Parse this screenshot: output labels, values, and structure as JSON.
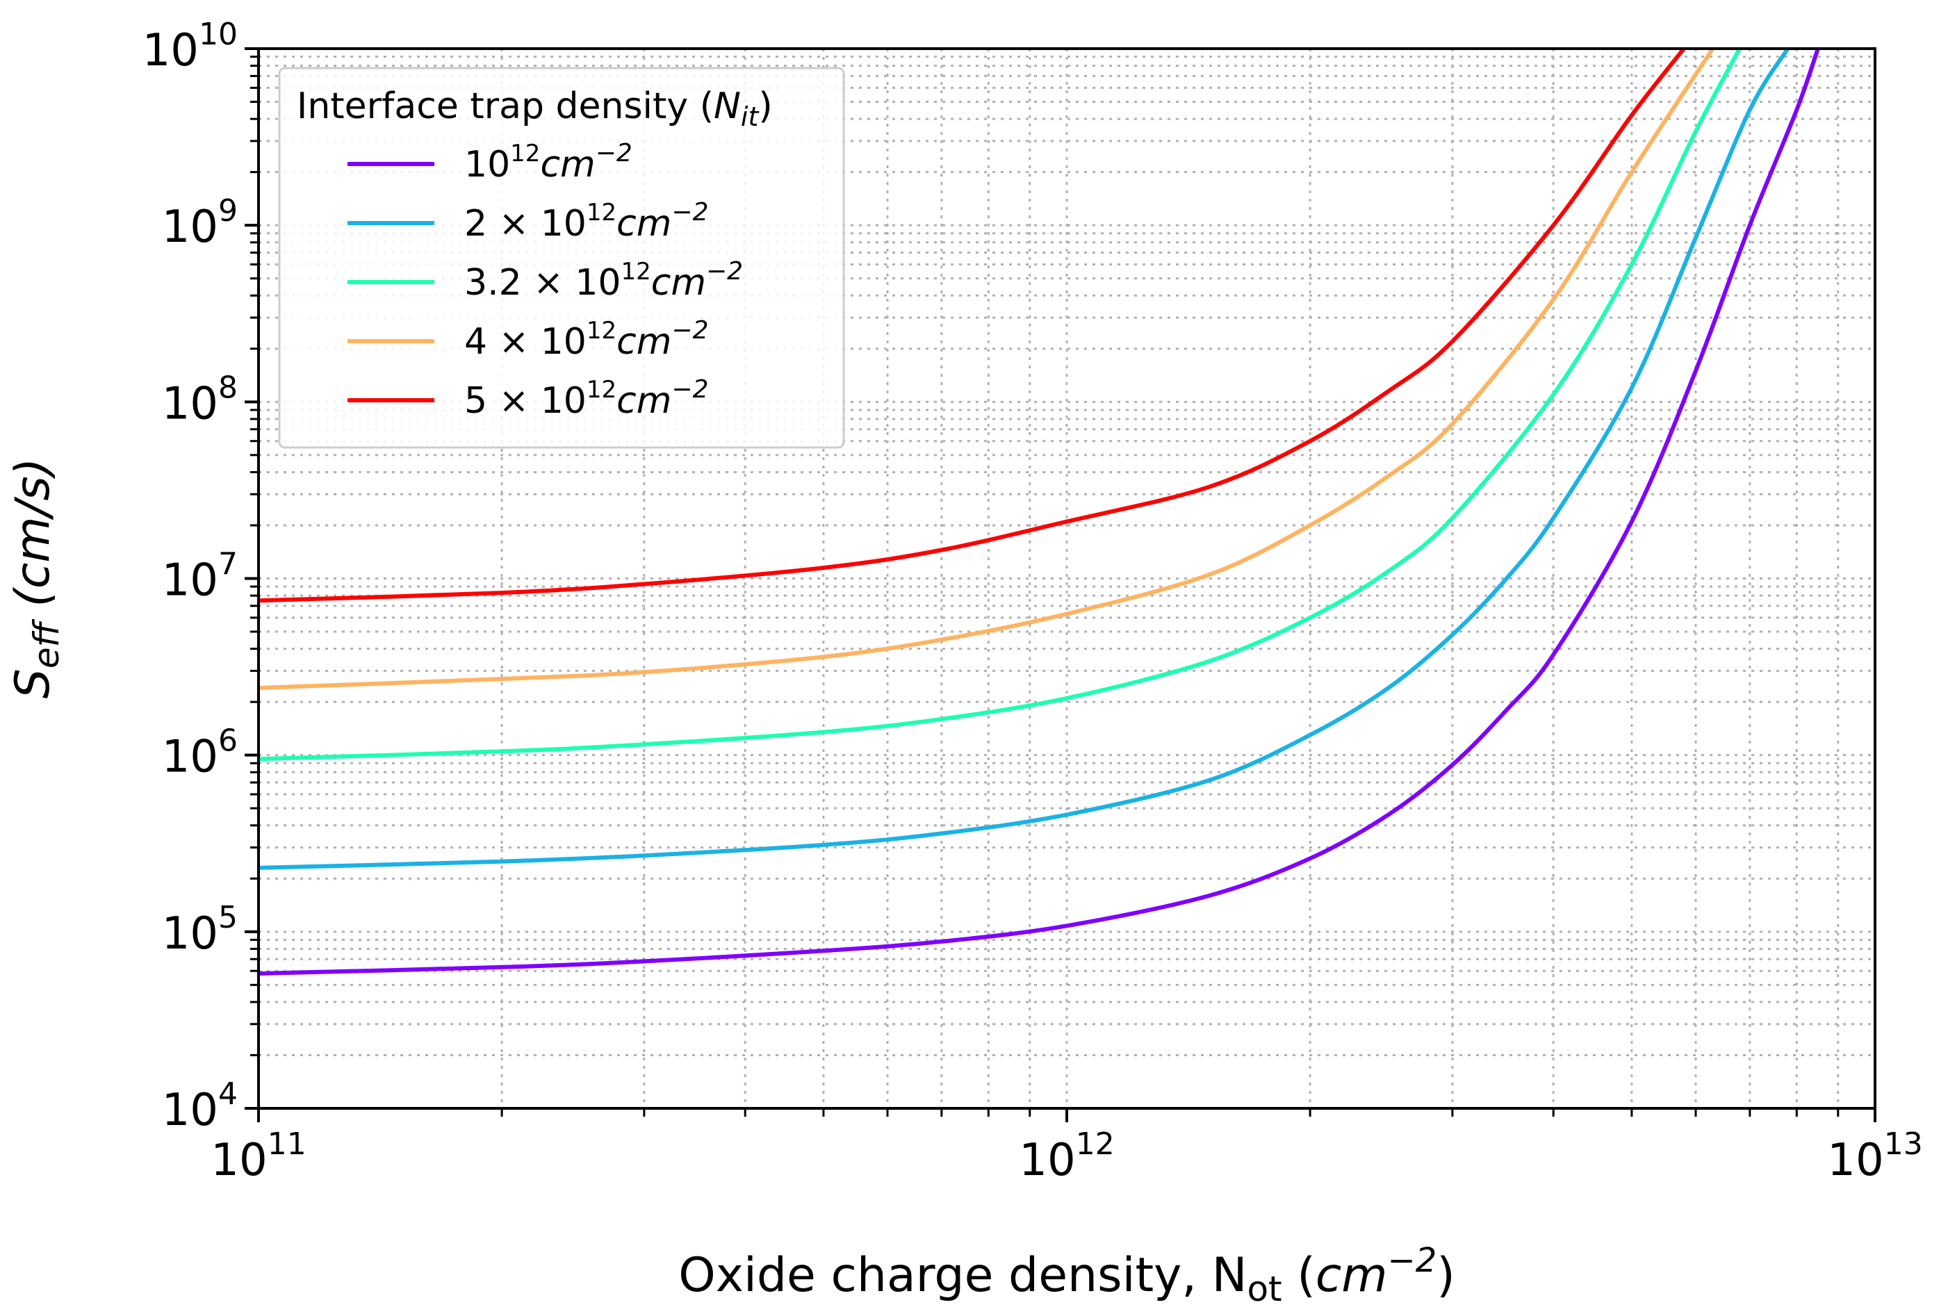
{
  "chart_data": {
    "type": "line",
    "xscale": "log",
    "yscale": "log",
    "xlim": [
      100000000000.0,
      10000000000000.0
    ],
    "ylim": [
      10000.0,
      10000000000.0
    ],
    "xlabel": {
      "text": "Oxide charge density, N",
      "sub": "ot",
      "unit_open": " (",
      "unit_base": "cm",
      "unit_exp": "−2",
      "unit_close": ")"
    },
    "ylabel": {
      "base": "S",
      "sub": "eff",
      "unit": " (cm/s)"
    },
    "x_ticks": [
      {
        "base": "10",
        "exp": "11",
        "value": 100000000000.0
      },
      {
        "base": "10",
        "exp": "12",
        "value": 1000000000000.0
      },
      {
        "base": "10",
        "exp": "13",
        "value": 10000000000000.0
      }
    ],
    "y_ticks": [
      {
        "base": "10",
        "exp": "4",
        "value": 10000.0
      },
      {
        "base": "10",
        "exp": "5",
        "value": 100000.0
      },
      {
        "base": "10",
        "exp": "6",
        "value": 1000000.0
      },
      {
        "base": "10",
        "exp": "7",
        "value": 10000000.0
      },
      {
        "base": "10",
        "exp": "8",
        "value": 100000000.0
      },
      {
        "base": "10",
        "exp": "9",
        "value": 1000000000.0
      },
      {
        "base": "10",
        "exp": "10",
        "value": 10000000000.0
      }
    ],
    "grid": true,
    "legend": {
      "position": "top-left",
      "title": {
        "text": "Interface trap density (",
        "sym": "N",
        "sub": "it",
        "close": ")"
      }
    },
    "series": [
      {
        "name": "10¹²cm⁻²",
        "label": {
          "coef": "",
          "base": "10",
          "exp": "12",
          "unit": "cm",
          "unit_exp": "−2"
        },
        "color": "#8000ff",
        "x": [
          100000000000.0,
          200000000000.0,
          300000000000.0,
          500000000000.0,
          700000000000.0,
          1000000000000.0,
          1500000000000.0,
          2000000000000.0,
          2500000000000.0,
          3000000000000.0,
          3500000000000.0,
          4000000000000.0,
          5000000000000.0,
          6000000000000.0,
          7000000000000.0,
          8000000000000.0,
          8500000000000.0
        ],
        "y": [
          58000.0,
          63000.0,
          68000.0,
          78000.0,
          88000.0,
          108000.0,
          160000.0,
          260000.0,
          460000.0,
          880000.0,
          1800000.0,
          3700000.0,
          21000000.0,
          150000000.0,
          1000000000.0,
          4500000000.0,
          10000000000.0
        ]
      },
      {
        "name": "2 × 10¹²cm⁻²",
        "label": {
          "coef": "2 × ",
          "base": "10",
          "exp": "12",
          "unit": "cm",
          "unit_exp": "−2"
        },
        "color": "#1ab2e5",
        "x": [
          100000000000.0,
          200000000000.0,
          300000000000.0,
          500000000000.0,
          700000000000.0,
          1000000000000.0,
          1500000000000.0,
          2000000000000.0,
          2500000000000.0,
          3000000000000.0,
          3500000000000.0,
          4000000000000.0,
          5000000000000.0,
          6000000000000.0,
          7000000000000.0,
          7800000000000.0
        ],
        "y": [
          230000.0,
          250000.0,
          270000.0,
          310000.0,
          360000.0,
          460000.0,
          720000.0,
          1300000.0,
          2400000.0,
          4800000.0,
          10000000.0,
          22000000.0,
          120000000.0,
          850000000.0,
          4500000000.0,
          10000000000.0
        ]
      },
      {
        "name": "3.2 × 10¹²cm⁻²",
        "label": {
          "coef": "3.2 × ",
          "base": "10",
          "exp": "12",
          "unit": "cm",
          "unit_exp": "−2"
        },
        "color": "#1dffb0",
        "x": [
          100000000000.0,
          200000000000.0,
          300000000000.0,
          500000000000.0,
          700000000000.0,
          1000000000000.0,
          1500000000000.0,
          2000000000000.0,
          2500000000000.0,
          3000000000000.0,
          4000000000000.0,
          5000000000000.0,
          6000000000000.0,
          6800000000000.0
        ],
        "y": [
          950000.0,
          1050000.0,
          1150000.0,
          1350000.0,
          1600000.0,
          2100000.0,
          3400000.0,
          6000000.0,
          11000000.0,
          22000000.0,
          110000000.0,
          600000000.0,
          3400000000.0,
          10000000000.0
        ]
      },
      {
        "name": "4 × 10¹²cm⁻²",
        "label": {
          "coef": "4 × ",
          "base": "10",
          "exp": "12",
          "unit": "cm",
          "unit_exp": "−2"
        },
        "color": "#ffb360",
        "x": [
          100000000000.0,
          200000000000.0,
          300000000000.0,
          500000000000.0,
          700000000000.0,
          1000000000000.0,
          1500000000000.0,
          2000000000000.0,
          2500000000000.0,
          3000000000000.0,
          4000000000000.0,
          5000000000000.0,
          6300000000000.0
        ],
        "y": [
          2400000.0,
          2700000.0,
          2950000.0,
          3600000.0,
          4500000.0,
          6300000.0,
          10500000.0,
          20000000.0,
          38000000.0,
          75000000.0,
          380000000.0,
          2000000000.0,
          10000000000.0
        ]
      },
      {
        "name": "5 × 10¹²cm⁻²",
        "label": {
          "coef": "5 × ",
          "base": "10",
          "exp": "12",
          "unit": "cm",
          "unit_exp": "−2"
        },
        "color": "#ff0000",
        "x": [
          100000000000.0,
          200000000000.0,
          300000000000.0,
          500000000000.0,
          700000000000.0,
          1000000000000.0,
          1500000000000.0,
          2000000000000.0,
          2500000000000.0,
          3000000000000.0,
          4000000000000.0,
          5000000000000.0,
          5800000000000.0
        ],
        "y": [
          7500000.0,
          8300000.0,
          9300000.0,
          11500000.0,
          14500000.0,
          21000000.0,
          33000000.0,
          60000000.0,
          115000000.0,
          220000000.0,
          1000000000.0,
          4200000000.0,
          10000000000.0
        ]
      }
    ]
  }
}
